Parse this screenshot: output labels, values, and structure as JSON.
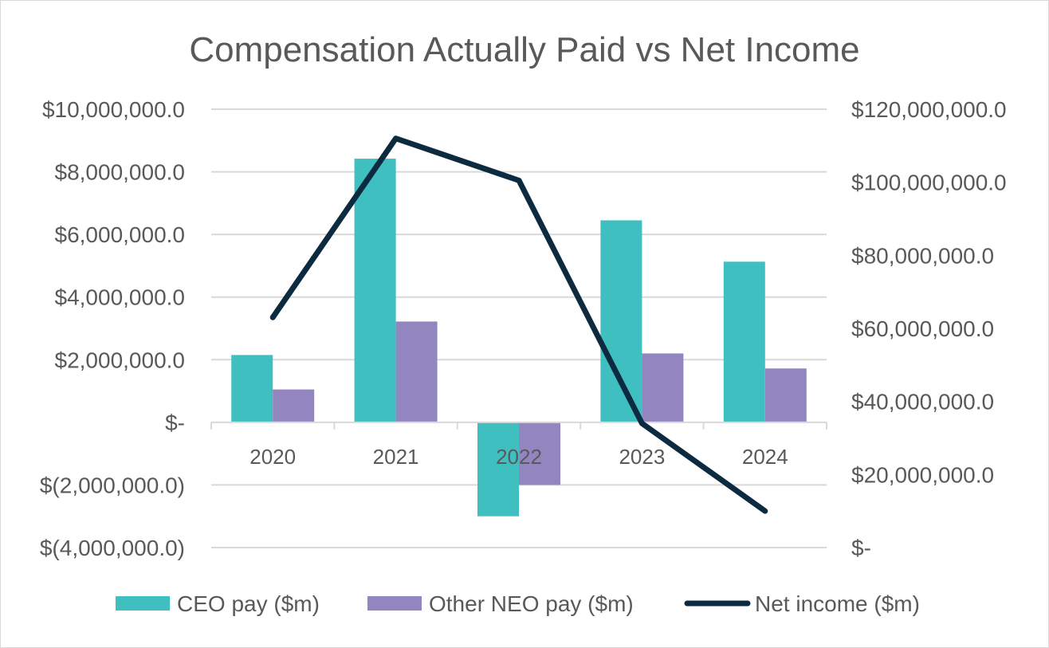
{
  "chart_data": {
    "type": "bar",
    "title": "Compensation Actually Paid vs Net Income",
    "categories": [
      "2020",
      "2021",
      "2022",
      "2023",
      "2024"
    ],
    "series": [
      {
        "name": "CEO pay ($m)",
        "type": "bar",
        "axis": "left",
        "color": "#3fbfbf",
        "values": [
          2150000,
          8420000,
          -3000000,
          6450000,
          5130000
        ]
      },
      {
        "name": "Other NEO pay ($m)",
        "type": "bar",
        "axis": "left",
        "color": "#9386c0",
        "values": [
          1050000,
          3220000,
          -2000000,
          2200000,
          1720000
        ]
      },
      {
        "name": "Net income ($m)",
        "type": "line",
        "axis": "right",
        "color": "#0d2b40",
        "values": [
          63000000,
          112000000,
          100500000,
          34000000,
          10000000
        ]
      }
    ],
    "left_axis": {
      "ylim": [
        -4000000,
        10000000
      ],
      "ticks": [
        10000000,
        8000000,
        6000000,
        4000000,
        2000000,
        0,
        -2000000,
        -4000000
      ],
      "tick_labels": [
        "$10,000,000.0",
        "$8,000,000.0",
        "$6,000,000.0",
        "$4,000,000.0",
        "$2,000,000.0",
        "$-",
        "$(2,000,000.0)",
        "$(4,000,000.0)"
      ]
    },
    "right_axis": {
      "ylim": [
        0,
        120000000
      ],
      "ticks": [
        120000000,
        100000000,
        80000000,
        60000000,
        40000000,
        20000000,
        0
      ],
      "tick_labels": [
        "$120,000,000.0",
        "$100,000,000.0",
        "$80,000,000.0",
        "$60,000,000.0",
        "$40,000,000.0",
        "$20,000,000.0",
        "$-"
      ]
    },
    "xlabel": "",
    "ylabel": "",
    "grid": true,
    "legend": "bottom"
  }
}
